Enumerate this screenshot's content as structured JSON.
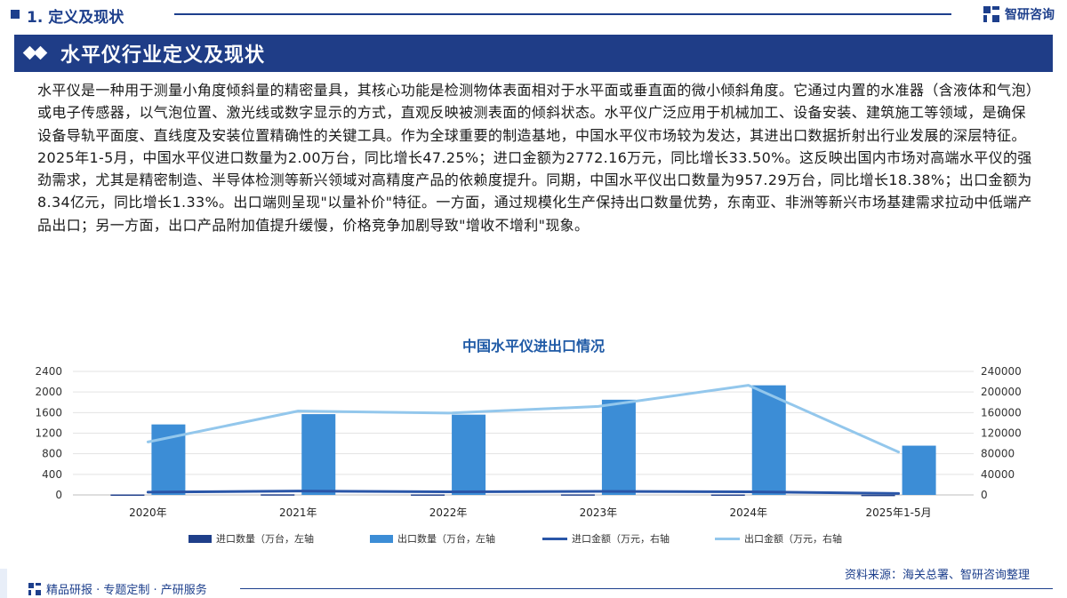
{
  "header": {
    "section": "1. 定义及现状",
    "brand": "智研咨询"
  },
  "title": "水平仪行业定义及现状",
  "paragraph": "水平仪是一种用于测量小角度倾斜量的精密量具，其核心功能是检测物体表面相对于水平面或垂直面的微小倾斜角度。它通过内置的水准器（含液体和气泡）或电子传感器，以气泡位置、激光线或数字显示的方式，直观反映被测表面的倾斜状态。水平仪广泛应用于机械加工、设备安装、建筑施工等领域，是确保设备导轨平面度、直线度及安装位置精确性的关键工具。作为全球重要的制造基地，中国水平仪市场较为发达，其进出口数据折射出行业发展的深层特征。2025年1-5月，中国水平仪进口数量为2.00万台，同比增长47.25%；进口金额为2772.16万元，同比增长33.50%。这反映出国内市场对高端水平仪的强劲需求，尤其是精密制造、半导体检测等新兴领域对高精度产品的依赖度提升。同期，中国水平仪出口数量为957.29万台，同比增长18.38%；出口金额为8.34亿元，同比增长1.33%。出口端则呈现\"以量补价\"特征。一方面，通过规模化生产保持出口数量优势，东南亚、非洲等新兴市场基建需求拉动中低端产品出口；另一方面，出口产品附加值提升缓慢，价格竞争加剧导致\"增收不增利\"现象。",
  "chart_data": {
    "type": "bar",
    "title": "中国水平仪进出口情况",
    "categories": [
      "2020年",
      "2021年",
      "2022年",
      "2023年",
      "2024年",
      "2025年1-5月"
    ],
    "left_axis": {
      "ticks": [
        "0",
        "400",
        "800",
        "1200",
        "1600",
        "2000",
        "2400"
      ],
      "ylim": [
        0,
        2400
      ]
    },
    "right_axis": {
      "ticks": [
        "0",
        "40000",
        "80000",
        "120000",
        "160000",
        "200000",
        "240000"
      ],
      "ylim": [
        0,
        240000
      ]
    },
    "series": [
      {
        "name": "进口数量（万台，左轴",
        "type": "bar",
        "axis": "left",
        "color": "#1f3f8a",
        "values": [
          9,
          12,
          10,
          11,
          9,
          2
        ]
      },
      {
        "name": "出口数量（万台，左轴",
        "type": "bar",
        "axis": "left",
        "color": "#3c8dd6",
        "values": [
          1370,
          1570,
          1560,
          1850,
          2130,
          957.29
        ]
      },
      {
        "name": "进口金额（万元，右轴",
        "type": "line",
        "axis": "right",
        "color": "#2a56a8",
        "values": [
          5500,
          7500,
          6000,
          7000,
          6000,
          2772.16
        ]
      },
      {
        "name": "出口金额（万元，右轴",
        "type": "line",
        "axis": "right",
        "color": "#93c7ec",
        "values": [
          103000,
          163000,
          159000,
          172000,
          213000,
          83400
        ]
      }
    ],
    "grid": true,
    "legend_position": "bottom"
  },
  "footer": {
    "source": "资料来源：海关总署、智研咨询整理",
    "tagline": "精品研报 · 专题定制 · 产研服务"
  }
}
